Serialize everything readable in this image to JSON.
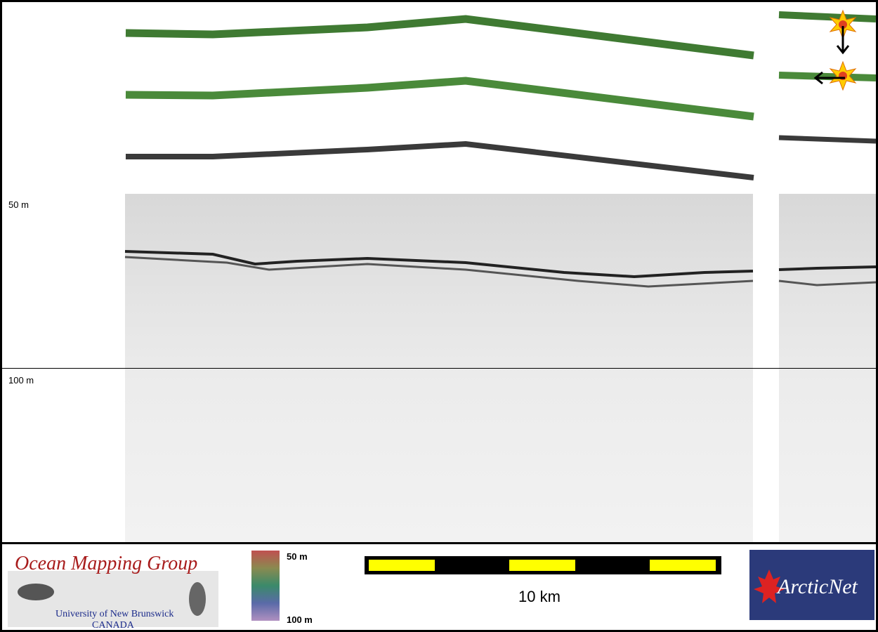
{
  "profile": {
    "depth_top_label": "50 m",
    "depth_bottom_label": "100 m"
  },
  "footer": {
    "logo_title": "Ocean Mapping Group",
    "logo_line1": "University of New Brunswick",
    "logo_line2": "CANADA",
    "colorbar_top": "50 m",
    "colorbar_bottom": "100 m",
    "scale_label": "10 km",
    "partner_logo": "ArcticNet"
  },
  "colors": {
    "swath_green": "#3f7a32",
    "swath_gray": "#3a3a3a",
    "scale_yellow": "#ffff00",
    "scale_black": "#000000",
    "marker_star": "#ffcc00"
  },
  "icons": [
    "star-marker-icon",
    "arrow-down-icon",
    "arrow-left-icon",
    "maple-leaf-icon",
    "seal-icon"
  ]
}
